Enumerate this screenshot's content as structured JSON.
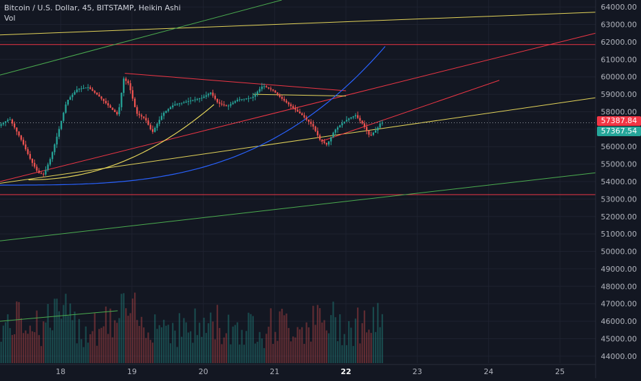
{
  "header": {
    "symbol_line": "Bitcoin / U.S. Dollar, 45, BITSTAMP, Heikin Ashi",
    "indicator": "Vol"
  },
  "price_axis": {
    "ticks": [
      "64000.00",
      "63000.00",
      "62000.00",
      "61000.00",
      "60000.00",
      "59000.00",
      "58000.00",
      "57000.00",
      "56000.00",
      "55000.00",
      "54000.00",
      "53000.00",
      "52000.00",
      "51000.00",
      "50000.00",
      "49000.00",
      "48000.00",
      "47000.00",
      "46000.00",
      "45000.00",
      "44000.00"
    ],
    "ask_tag": "57387.84",
    "last_tag": "57367.54"
  },
  "time_axis": {
    "ticks": [
      "18",
      "19",
      "20",
      "21",
      "22",
      "23",
      "24",
      "25"
    ],
    "active_tick": "22"
  },
  "colors": {
    "background": "#131722",
    "up": "#26a69a",
    "down": "#ef5350",
    "ask_tag": "#f23645",
    "last_tag": "#26a69a",
    "grid": "#1e2230",
    "axis_text": "#b2b5be"
  },
  "chart_data": {
    "type": "candlestick",
    "symbol": "Bitcoin / U.S. Dollar",
    "interval": "45",
    "exchange": "BITSTAMP",
    "candle_style": "Heikin Ashi",
    "ylim": [
      43600,
      64400
    ],
    "xlim_days": [
      17.15,
      25.5
    ],
    "x_ticks": [
      18,
      19,
      20,
      21,
      22,
      23,
      24,
      25
    ],
    "current_price": 57367.54,
    "ask_price": 57387.84,
    "price_path": [
      [
        17.15,
        57200
      ],
      [
        17.3,
        57600
      ],
      [
        17.45,
        56500
      ],
      [
        17.6,
        55200
      ],
      [
        17.7,
        54500
      ],
      [
        17.78,
        54400
      ],
      [
        17.88,
        55400
      ],
      [
        18.0,
        57100
      ],
      [
        18.1,
        58600
      ],
      [
        18.25,
        59300
      ],
      [
        18.4,
        59400
      ],
      [
        18.55,
        58900
      ],
      [
        18.72,
        58200
      ],
      [
        18.82,
        57800
      ],
      [
        18.9,
        59900
      ],
      [
        18.97,
        59600
      ],
      [
        19.08,
        57900
      ],
      [
        19.2,
        57600
      ],
      [
        19.3,
        56800
      ],
      [
        19.45,
        57900
      ],
      [
        19.6,
        58400
      ],
      [
        19.8,
        58600
      ],
      [
        20.0,
        58800
      ],
      [
        20.12,
        59100
      ],
      [
        20.22,
        58500
      ],
      [
        20.35,
        58300
      ],
      [
        20.5,
        58700
      ],
      [
        20.7,
        58800
      ],
      [
        20.85,
        59500
      ],
      [
        21.0,
        59200
      ],
      [
        21.1,
        58800
      ],
      [
        21.25,
        58300
      ],
      [
        21.4,
        57800
      ],
      [
        21.55,
        57200
      ],
      [
        21.65,
        56400
      ],
      [
        21.75,
        56100
      ],
      [
        21.85,
        56900
      ],
      [
        21.95,
        57300
      ],
      [
        22.05,
        57600
      ],
      [
        22.15,
        57800
      ],
      [
        22.25,
        57300
      ],
      [
        22.35,
        56600
      ],
      [
        22.45,
        57000
      ],
      [
        22.5,
        57370
      ]
    ],
    "volume": {
      "ylim": [
        0,
        3000
      ],
      "note_values": [
        300,
        500,
        400,
        700,
        900,
        500,
        400,
        600,
        800,
        1100,
        700,
        400,
        500,
        600,
        900,
        1200,
        800,
        600,
        500,
        400
      ]
    },
    "drawings": {
      "horizontal": [
        {
          "price": 61850,
          "color": "#f23645"
        },
        {
          "price": 53250,
          "color": "#f23645"
        }
      ],
      "trendlines": [
        {
          "from": [
            17.15,
            62400
          ],
          "to": [
            25.5,
            63700
          ],
          "color": "#e6d65a"
        },
        {
          "from": [
            17.15,
            60100
          ],
          "to": [
            21.1,
            64400
          ],
          "color": "#4caf50"
        },
        {
          "from": [
            17.15,
            54000
          ],
          "to": [
            25.5,
            62500
          ],
          "color": "#f23645"
        },
        {
          "from": [
            17.15,
            53900
          ],
          "to": [
            25.5,
            58800
          ],
          "color": "#e6d65a"
        },
        {
          "from": [
            17.15,
            50600
          ],
          "to": [
            25.5,
            54500
          ],
          "color": "#4caf50"
        },
        {
          "from": [
            17.15,
            46000
          ],
          "to": [
            18.8,
            46600
          ],
          "color": "#4caf50"
        },
        {
          "from": [
            18.9,
            60200
          ],
          "to": [
            22.0,
            59200
          ],
          "color": "#f23645"
        },
        {
          "from": [
            21.65,
            56300
          ],
          "to": [
            24.15,
            59800
          ],
          "color": "#f23645"
        },
        {
          "from": [
            20.7,
            59000
          ],
          "to": [
            22.0,
            58900
          ],
          "color": "#e6d65a"
        }
      ],
      "curves": [
        {
          "name": "parabola",
          "color": "#2962ff"
        }
      ]
    }
  }
}
